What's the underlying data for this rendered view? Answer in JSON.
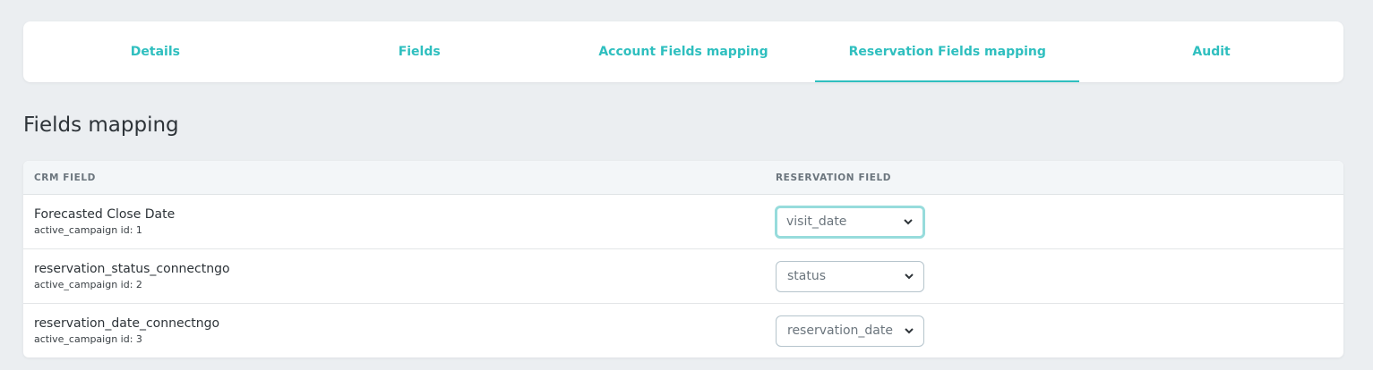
{
  "tabs": [
    {
      "label": "Details"
    },
    {
      "label": "Fields"
    },
    {
      "label": "Account Fields mapping"
    },
    {
      "label": "Reservation Fields mapping",
      "active": true
    },
    {
      "label": "Audit"
    }
  ],
  "title": "Fields mapping",
  "table": {
    "headers": [
      "CRM FIELD",
      "RESERVATION FIELD"
    ],
    "rows": [
      {
        "name": "Forecasted Close Date",
        "sub": "active_campaign id: 1",
        "value": "visit_date"
      },
      {
        "name": "reservation_status_connectngo",
        "sub": "active_campaign id: 2",
        "value": "status"
      },
      {
        "name": "reservation_date_connectngo",
        "sub": "active_campaign id: 3",
        "value": "reservation_date"
      }
    ]
  },
  "colors": {
    "accent": "#2fbfbf",
    "focus_ring": "#97dcdc"
  }
}
